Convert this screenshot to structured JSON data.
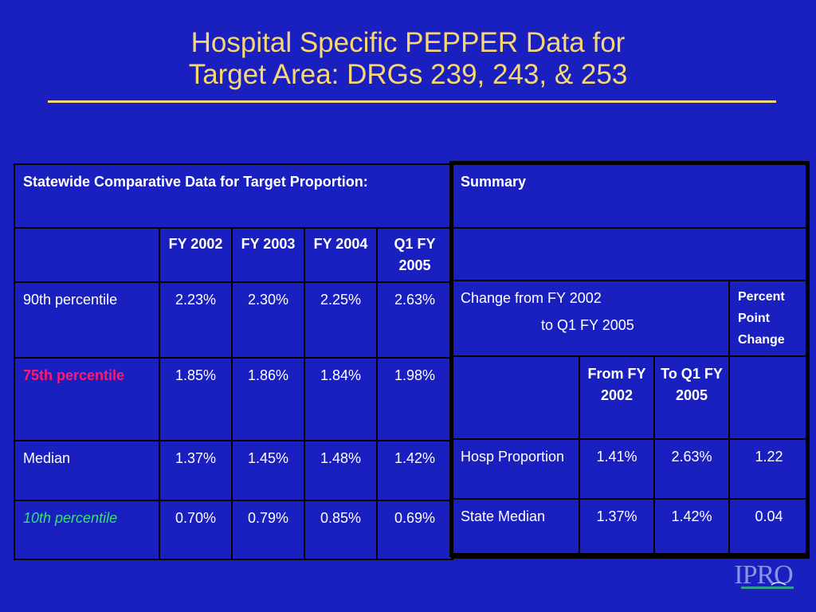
{
  "title": {
    "line1": "Hospital Specific PEPPER Data for",
    "line2": "Target Area: DRGs 239, 243, & 253"
  },
  "left_table": {
    "heading": "Statewide Comparative Data for Target Proportion:",
    "columns": [
      "FY 2002",
      "FY 2003",
      "FY 2004",
      "Q1 FY 2005"
    ],
    "rows": [
      {
        "label": "90th percentile",
        "values": [
          "2.23%",
          "2.30%",
          "2.25%",
          "2.63%"
        ]
      },
      {
        "label": "75th percentile",
        "values": [
          "1.85%",
          "1.86%",
          "1.84%",
          "1.98%"
        ]
      },
      {
        "label": "Median",
        "values": [
          "1.37%",
          "1.45%",
          "1.48%",
          "1.42%"
        ]
      },
      {
        "label": "10th percentile",
        "values": [
          "0.70%",
          "0.79%",
          "0.85%",
          "0.69%"
        ]
      }
    ]
  },
  "summary": {
    "heading": "Summary",
    "change_line1": "Change from FY 2002",
    "change_line2": "to Q1 FY 2005",
    "ppc_label": "Percent Point Change",
    "col_from": "From FY 2002",
    "col_to": "To Q1 FY 2005",
    "rows": [
      {
        "label": "Hosp Proportion",
        "from": "1.41%",
        "to": "2.63%",
        "change": "1.22"
      },
      {
        "label": "State Median",
        "from": "1.37%",
        "to": "1.42%",
        "change": "0.04"
      }
    ]
  },
  "logo": {
    "text": "IPRO"
  },
  "colors": {
    "background": "#1a1fbf",
    "title": "#f7d774",
    "highlight_75th": "#ff1a6e",
    "highlight_10th": "#33e07a"
  }
}
